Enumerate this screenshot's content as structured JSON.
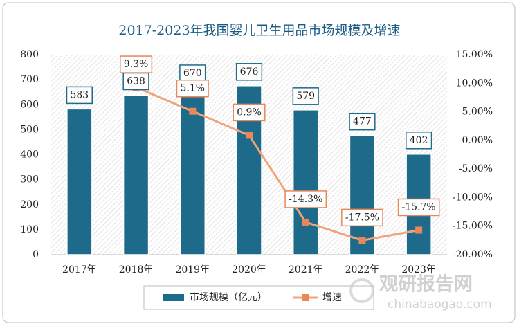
{
  "chart_data": {
    "type": "bar",
    "title": "2017-2023年我国婴儿卫生用品市场规模及增速",
    "categories": [
      "2017年",
      "2018年",
      "2019年",
      "2020年",
      "2021年",
      "2022年",
      "2023年"
    ],
    "series": [
      {
        "name": "市场规模（亿元）",
        "type": "bar",
        "color": "#1d6a8a",
        "values": [
          583,
          638,
          670,
          676,
          579,
          477,
          402
        ]
      },
      {
        "name": "增速",
        "type": "line",
        "axis": "y2",
        "color": "#f0a47a",
        "values": [
          null,
          9.3,
          5.1,
          0.9,
          -14.3,
          -17.5,
          -15.7
        ],
        "value_labels": [
          null,
          "9.3%",
          "5.1%",
          "0.9%",
          "-14.3%",
          "-17.5%",
          "-15.7%"
        ]
      }
    ],
    "ylim": [
      0,
      800
    ],
    "yticks": [
      0,
      100,
      200,
      300,
      400,
      500,
      600,
      700,
      800
    ],
    "y2lim": [
      -20,
      15
    ],
    "y2ticks": [
      {
        "value": 15,
        "label": "15.00%"
      },
      {
        "value": 10,
        "label": "10.00%"
      },
      {
        "value": 5,
        "label": "5.00%"
      },
      {
        "value": 0,
        "label": "0.00%"
      },
      {
        "value": -5,
        "label": "-5.00%"
      },
      {
        "value": -10,
        "label": "-10.00%"
      },
      {
        "value": -15,
        "label": "-15.00%"
      },
      {
        "value": -20,
        "label": "-20.00%"
      }
    ],
    "legend": "bottom",
    "grid": false,
    "watermark": [
      "观研报告网",
      "chinabaogao.com"
    ]
  }
}
